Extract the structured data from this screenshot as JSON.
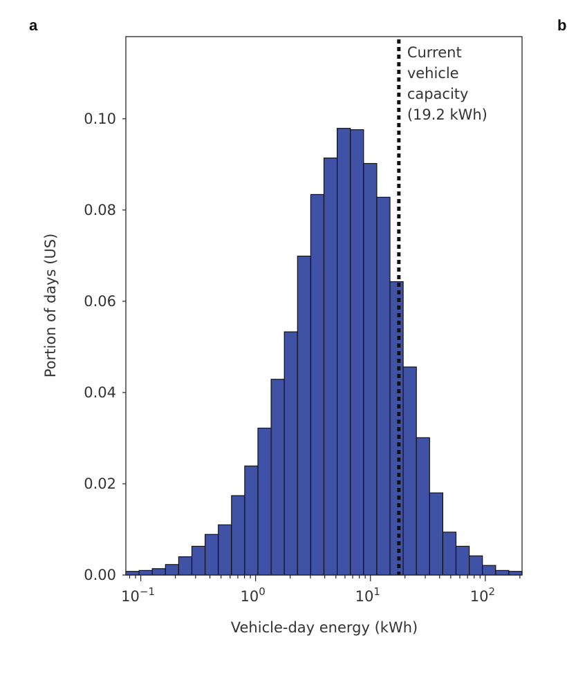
{
  "panel_labels": [
    "a",
    "b"
  ],
  "chart_data": {
    "type": "bar",
    "title": "",
    "xlabel": "Vehicle-day energy (kWh)",
    "ylabel": "Portion of days (US)",
    "xscale": "log",
    "xlim_log10": [
      -1.13,
      2.32
    ],
    "ylim": [
      0,
      0.118
    ],
    "yticks": [
      "0.00",
      "0.02",
      "0.04",
      "0.06",
      "0.08",
      "0.10"
    ],
    "xticks": [
      {
        "base": "10",
        "exp": "−1",
        "log": -1
      },
      {
        "base": "10",
        "exp": "0",
        "log": 0
      },
      {
        "base": "10",
        "exp": "1",
        "log": 1
      },
      {
        "base": "10",
        "exp": "2",
        "log": 2
      }
    ],
    "bar_color": "#4052a5",
    "values": [
      0.0008,
      0.001,
      0.0014,
      0.0023,
      0.004,
      0.0063,
      0.0089,
      0.011,
      0.0174,
      0.0239,
      0.0322,
      0.0429,
      0.0533,
      0.0699,
      0.0834,
      0.0914,
      0.0979,
      0.0976,
      0.0902,
      0.0828,
      0.0643,
      0.0456,
      0.0301,
      0.018,
      0.0094,
      0.0063,
      0.0042,
      0.0021,
      0.001,
      0.0008
    ],
    "reference_line": {
      "value_kwh": 19.2,
      "style": "dotted",
      "label_lines": [
        "Current",
        "vehicle",
        "capacity",
        "(19.2 kWh)"
      ]
    }
  }
}
